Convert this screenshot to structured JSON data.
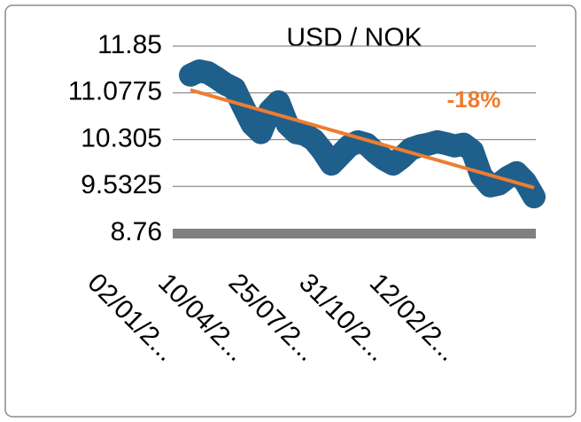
{
  "chart_data": {
    "type": "line",
    "title": "USD / NOK",
    "annotation": "-18%",
    "annotation_color": "#ed7d31",
    "trendline": true,
    "trendline_color": "#ed7d31",
    "grid": true,
    "categories": [
      "02/01/2...",
      null,
      null,
      null,
      null,
      null,
      null,
      null,
      "10/04/2...",
      null,
      null,
      null,
      null,
      null,
      null,
      null,
      "25/07/2...",
      null,
      null,
      null,
      null,
      null,
      null,
      null,
      "31/10/2...",
      null,
      null,
      null,
      null,
      null,
      null,
      null,
      "12/02/2...",
      null,
      null,
      null,
      null,
      null,
      null,
      null
    ],
    "series": [
      {
        "color": "#1f5f8b",
        "values": [
          11.37,
          11.44,
          11.41,
          11.32,
          11.22,
          11.15,
          10.85,
          10.56,
          10.42,
          10.78,
          10.93,
          10.56,
          10.42,
          10.39,
          10.3,
          10.12,
          9.9,
          10.05,
          10.2,
          10.27,
          10.23,
          10.09,
          9.98,
          9.9,
          10.01,
          10.15,
          10.2,
          10.23,
          10.27,
          10.24,
          10.2,
          10.23,
          10.12,
          9.71,
          9.54,
          9.57,
          9.68,
          9.76,
          9.61,
          9.36
        ]
      }
    ],
    "ylim": [
      8.76,
      11.85
    ],
    "yticks": [
      8.76,
      9.5325,
      10.305,
      11.0775,
      11.85
    ]
  }
}
